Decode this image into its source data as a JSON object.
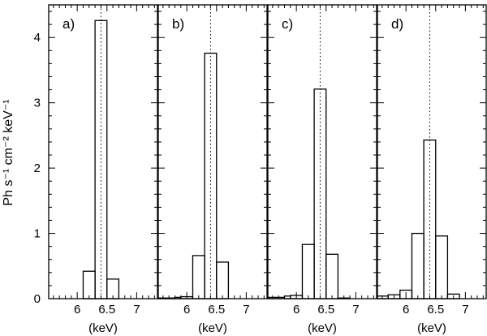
{
  "y_axis_label": "Ph s⁻¹ cm⁻² keV⁻¹",
  "chart_data": [
    {
      "type": "bar",
      "panel_label": "a)",
      "xlabel": "(keV)",
      "x_ticks": [
        "6",
        "6.5",
        "7"
      ],
      "y_ticks": [
        "0",
        "1",
        "2",
        "3",
        "4"
      ],
      "xlim": [
        5.52,
        7.35
      ],
      "ylim": [
        0,
        4.5
      ],
      "bin_edges": [
        5.52,
        5.8,
        5.9,
        6.1,
        6.3,
        6.5,
        6.7,
        6.9,
        7.35
      ],
      "values": [
        0.0,
        0.0,
        0.0,
        0.42,
        4.26,
        0.3,
        0.0,
        0.0
      ],
      "reference_line_x": 6.4
    },
    {
      "type": "bar",
      "panel_label": "b)",
      "xlabel": "(keV)",
      "x_ticks": [
        "6",
        "6.5",
        "7"
      ],
      "xlim": [
        5.52,
        7.35
      ],
      "ylim": [
        0,
        4.5
      ],
      "bin_edges": [
        5.52,
        5.8,
        5.9,
        6.1,
        6.3,
        6.5,
        6.7,
        6.9,
        7.35
      ],
      "values": [
        0.01,
        0.02,
        0.03,
        0.66,
        3.76,
        0.56,
        0.0,
        0.0
      ],
      "reference_line_x": 6.4
    },
    {
      "type": "bar",
      "panel_label": "c)",
      "xlabel": "(keV)",
      "x_ticks": [
        "6",
        "6.5",
        "7"
      ],
      "xlim": [
        5.52,
        7.35
      ],
      "ylim": [
        0,
        4.5
      ],
      "bin_edges": [
        5.52,
        5.8,
        5.9,
        6.1,
        6.3,
        6.5,
        6.7,
        6.9,
        7.35
      ],
      "values": [
        0.02,
        0.04,
        0.05,
        0.83,
        3.21,
        0.68,
        0.01,
        0.0
      ],
      "reference_line_x": 6.4
    },
    {
      "type": "bar",
      "panel_label": "d)",
      "xlabel": "(keV)",
      "x_ticks": [
        "6",
        "6.5",
        "7"
      ],
      "xlim": [
        5.52,
        7.35
      ],
      "ylim": [
        0,
        4.5
      ],
      "bin_edges": [
        5.52,
        5.7,
        5.9,
        6.1,
        6.3,
        6.5,
        6.7,
        6.9,
        7.35
      ],
      "values": [
        0.04,
        0.06,
        0.13,
        1.0,
        2.43,
        0.96,
        0.07,
        0.0
      ],
      "reference_line_x": 6.4
    }
  ]
}
